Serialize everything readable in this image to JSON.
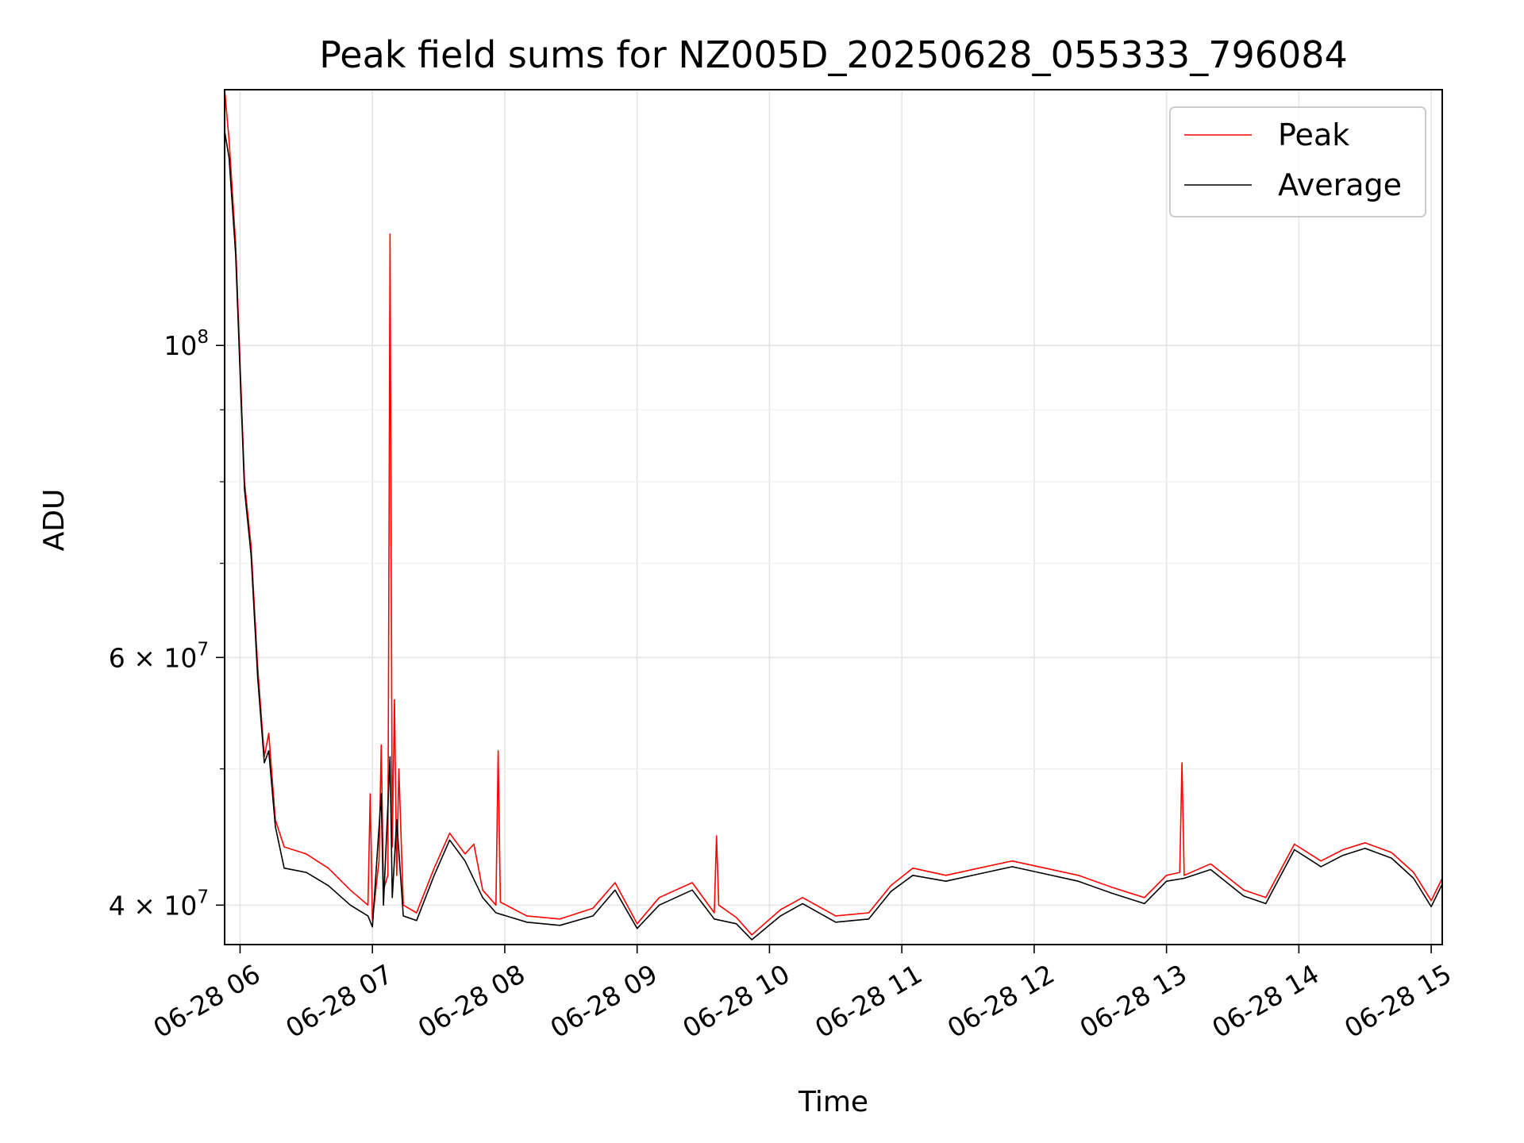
{
  "chart_data": {
    "type": "line",
    "title": "Peak field sums for NZ005D_20250628_055333_796084",
    "xlabel": "Time",
    "ylabel": "ADU",
    "yscale": "log",
    "grid": true,
    "legend_position": "top-right",
    "xlim": [
      "2025-06-28 05:53",
      "2025-06-28 15:05"
    ],
    "ylim": [
      37500000,
      152000000
    ],
    "x_ticks": [
      {
        "value": "2025-06-28 06:00",
        "label": "06-28 06"
      },
      {
        "value": "2025-06-28 07:00",
        "label": "06-28 07"
      },
      {
        "value": "2025-06-28 08:00",
        "label": "06-28 08"
      },
      {
        "value": "2025-06-28 09:00",
        "label": "06-28 09"
      },
      {
        "value": "2025-06-28 10:00",
        "label": "06-28 10"
      },
      {
        "value": "2025-06-28 11:00",
        "label": "06-28 11"
      },
      {
        "value": "2025-06-28 12:00",
        "label": "06-28 12"
      },
      {
        "value": "2025-06-28 13:00",
        "label": "06-28 13"
      },
      {
        "value": "2025-06-28 14:00",
        "label": "06-28 14"
      },
      {
        "value": "2025-06-28 15:00",
        "label": "06-28 15"
      }
    ],
    "y_major_ticks": [
      {
        "value": 100000000,
        "label_base": "10",
        "label_exp": "8"
      },
      {
        "value": 60000000,
        "label_base": "6 × 10",
        "label_exp": "7"
      },
      {
        "value": 40000000,
        "label_base": "4 × 10",
        "label_exp": "7"
      }
    ],
    "y_minor_ticks": [
      50000000,
      70000000,
      80000000,
      90000000
    ],
    "series": [
      {
        "name": "Peak",
        "color": "#ff0000",
        "points": [
          [
            "2025-06-28 05:53",
            152000000
          ],
          [
            "2025-06-28 05:55",
            140000000
          ],
          [
            "2025-06-28 05:58",
            118000000
          ],
          [
            "2025-06-28 06:02",
            80000000
          ],
          [
            "2025-06-28 06:05",
            72000000
          ],
          [
            "2025-06-28 06:08",
            59000000
          ],
          [
            "2025-06-28 06:11",
            51000000
          ],
          [
            "2025-06-28 06:13",
            53000000
          ],
          [
            "2025-06-28 06:16",
            46000000
          ],
          [
            "2025-06-28 06:20",
            44000000
          ],
          [
            "2025-06-28 06:30",
            43500000
          ],
          [
            "2025-06-28 06:40",
            42500000
          ],
          [
            "2025-06-28 06:50",
            41000000
          ],
          [
            "2025-06-28 06:58",
            40000000
          ],
          [
            "2025-06-28 06:59",
            48000000
          ],
          [
            "2025-06-28 07:00",
            39000000
          ],
          [
            "2025-06-28 07:03",
            43000000
          ],
          [
            "2025-06-28 07:04",
            52000000
          ],
          [
            "2025-06-28 07:05",
            41000000
          ],
          [
            "2025-06-28 07:07",
            42000000
          ],
          [
            "2025-06-28 07:08",
            120000000
          ],
          [
            "2025-06-28 07:09",
            44000000
          ],
          [
            "2025-06-28 07:10",
            56000000
          ],
          [
            "2025-06-28 07:11",
            42000000
          ],
          [
            "2025-06-28 07:12",
            50000000
          ],
          [
            "2025-06-28 07:14",
            40000000
          ],
          [
            "2025-06-28 07:20",
            39500000
          ],
          [
            "2025-06-28 07:28",
            42500000
          ],
          [
            "2025-06-28 07:35",
            45000000
          ],
          [
            "2025-06-28 07:42",
            43500000
          ],
          [
            "2025-06-28 07:46",
            44200000
          ],
          [
            "2025-06-28 07:50",
            41000000
          ],
          [
            "2025-06-28 07:56",
            40000000
          ],
          [
            "2025-06-28 07:57",
            51500000
          ],
          [
            "2025-06-28 07:58",
            40200000
          ],
          [
            "2025-06-28 08:10",
            39300000
          ],
          [
            "2025-06-28 08:25",
            39100000
          ],
          [
            "2025-06-28 08:40",
            39800000
          ],
          [
            "2025-06-28 08:50",
            41500000
          ],
          [
            "2025-06-28 09:00",
            38800000
          ],
          [
            "2025-06-28 09:10",
            40500000
          ],
          [
            "2025-06-28 09:25",
            41500000
          ],
          [
            "2025-06-28 09:35",
            39500000
          ],
          [
            "2025-06-28 09:36",
            44800000
          ],
          [
            "2025-06-28 09:37",
            40000000
          ],
          [
            "2025-06-28 09:45",
            39200000
          ],
          [
            "2025-06-28 09:52",
            38100000
          ],
          [
            "2025-06-28 10:05",
            39700000
          ],
          [
            "2025-06-28 10:15",
            40500000
          ],
          [
            "2025-06-28 10:30",
            39300000
          ],
          [
            "2025-06-28 10:45",
            39500000
          ],
          [
            "2025-06-28 10:55",
            41300000
          ],
          [
            "2025-06-28 11:05",
            42500000
          ],
          [
            "2025-06-28 11:20",
            42000000
          ],
          [
            "2025-06-28 11:35",
            42500000
          ],
          [
            "2025-06-28 11:50",
            43000000
          ],
          [
            "2025-06-28 12:05",
            42500000
          ],
          [
            "2025-06-28 12:20",
            42000000
          ],
          [
            "2025-06-28 12:35",
            41200000
          ],
          [
            "2025-06-28 12:50",
            40500000
          ],
          [
            "2025-06-28 13:00",
            42000000
          ],
          [
            "2025-06-28 13:06",
            42200000
          ],
          [
            "2025-06-28 13:07",
            50500000
          ],
          [
            "2025-06-28 13:08",
            42000000
          ],
          [
            "2025-06-28 13:20",
            42800000
          ],
          [
            "2025-06-28 13:35",
            41000000
          ],
          [
            "2025-06-28 13:45",
            40500000
          ],
          [
            "2025-06-28 13:58",
            44200000
          ],
          [
            "2025-06-28 14:10",
            43000000
          ],
          [
            "2025-06-28 14:20",
            43800000
          ],
          [
            "2025-06-28 14:30",
            44300000
          ],
          [
            "2025-06-28 14:42",
            43600000
          ],
          [
            "2025-06-28 14:52",
            42200000
          ],
          [
            "2025-06-28 15:00",
            40300000
          ],
          [
            "2025-06-28 15:05",
            41800000
          ]
        ]
      },
      {
        "name": "Average",
        "color": "#000000",
        "points": [
          [
            "2025-06-28 05:53",
            142000000
          ],
          [
            "2025-06-28 05:55",
            136000000
          ],
          [
            "2025-06-28 05:58",
            116000000
          ],
          [
            "2025-06-28 06:02",
            79000000
          ],
          [
            "2025-06-28 06:05",
            71000000
          ],
          [
            "2025-06-28 06:08",
            58000000
          ],
          [
            "2025-06-28 06:11",
            50500000
          ],
          [
            "2025-06-28 06:13",
            51500000
          ],
          [
            "2025-06-28 06:16",
            45500000
          ],
          [
            "2025-06-28 06:20",
            42500000
          ],
          [
            "2025-06-28 06:30",
            42200000
          ],
          [
            "2025-06-28 06:40",
            41300000
          ],
          [
            "2025-06-28 06:50",
            40000000
          ],
          [
            "2025-06-28 06:58",
            39300000
          ],
          [
            "2025-06-28 07:00",
            38600000
          ],
          [
            "2025-06-28 07:04",
            48000000
          ],
          [
            "2025-06-28 07:05",
            40000000
          ],
          [
            "2025-06-28 07:08",
            51000000
          ],
          [
            "2025-06-28 07:09",
            40500000
          ],
          [
            "2025-06-28 07:11",
            46000000
          ],
          [
            "2025-06-28 07:14",
            39300000
          ],
          [
            "2025-06-28 07:20",
            39000000
          ],
          [
            "2025-06-28 07:28",
            42000000
          ],
          [
            "2025-06-28 07:35",
            44500000
          ],
          [
            "2025-06-28 07:42",
            43000000
          ],
          [
            "2025-06-28 07:50",
            40500000
          ],
          [
            "2025-06-28 07:56",
            39500000
          ],
          [
            "2025-06-28 08:10",
            38900000
          ],
          [
            "2025-06-28 08:25",
            38700000
          ],
          [
            "2025-06-28 08:40",
            39300000
          ],
          [
            "2025-06-28 08:50",
            41000000
          ],
          [
            "2025-06-28 09:00",
            38500000
          ],
          [
            "2025-06-28 09:10",
            40000000
          ],
          [
            "2025-06-28 09:25",
            41000000
          ],
          [
            "2025-06-28 09:35",
            39100000
          ],
          [
            "2025-06-28 09:45",
            38800000
          ],
          [
            "2025-06-28 09:52",
            37800000
          ],
          [
            "2025-06-28 10:05",
            39300000
          ],
          [
            "2025-06-28 10:15",
            40100000
          ],
          [
            "2025-06-28 10:30",
            38900000
          ],
          [
            "2025-06-28 10:45",
            39100000
          ],
          [
            "2025-06-28 10:55",
            40900000
          ],
          [
            "2025-06-28 11:05",
            42000000
          ],
          [
            "2025-06-28 11:20",
            41600000
          ],
          [
            "2025-06-28 11:35",
            42100000
          ],
          [
            "2025-06-28 11:50",
            42600000
          ],
          [
            "2025-06-28 12:05",
            42100000
          ],
          [
            "2025-06-28 12:20",
            41600000
          ],
          [
            "2025-06-28 12:35",
            40800000
          ],
          [
            "2025-06-28 12:50",
            40100000
          ],
          [
            "2025-06-28 13:00",
            41600000
          ],
          [
            "2025-06-28 13:08",
            41800000
          ],
          [
            "2025-06-28 13:20",
            42400000
          ],
          [
            "2025-06-28 13:35",
            40600000
          ],
          [
            "2025-06-28 13:45",
            40100000
          ],
          [
            "2025-06-28 13:58",
            43800000
          ],
          [
            "2025-06-28 14:10",
            42600000
          ],
          [
            "2025-06-28 14:20",
            43400000
          ],
          [
            "2025-06-28 14:30",
            43900000
          ],
          [
            "2025-06-28 14:42",
            43200000
          ],
          [
            "2025-06-28 14:52",
            41800000
          ],
          [
            "2025-06-28 15:00",
            39900000
          ],
          [
            "2025-06-28 15:05",
            41400000
          ]
        ]
      }
    ]
  }
}
